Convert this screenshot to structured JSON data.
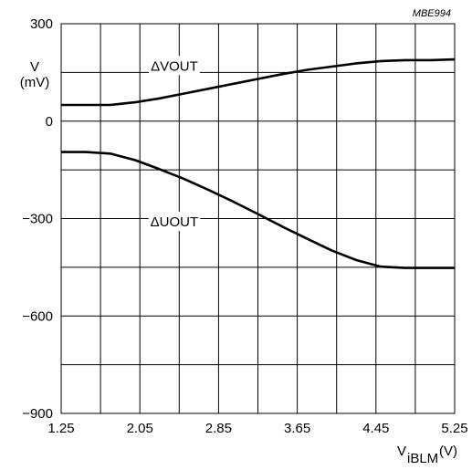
{
  "figure_id": "MBE994",
  "chart_data": {
    "type": "line",
    "title": "",
    "ylabel": "V",
    "yunit": "(mV)",
    "xlabel_main": "V",
    "xlabel_sub": "iBLM",
    "xunit": "(V)",
    "xlim": [
      1.25,
      5.25
    ],
    "ylim": [
      -900,
      300
    ],
    "x_ticks": [
      "1.25",
      "2.05",
      "2.85",
      "3.65",
      "4.45",
      "5.25"
    ],
    "y_ticks": [
      "300",
      "0",
      "−300",
      "−600",
      "−900"
    ],
    "y_tick_values": [
      300,
      0,
      -300,
      -600,
      -900
    ],
    "grid": true,
    "series": [
      {
        "name": "ΔVOUT",
        "color": "#000000",
        "x": [
          1.25,
          1.5,
          1.75,
          2.0,
          2.25,
          2.5,
          2.75,
          3.0,
          3.25,
          3.5,
          3.75,
          4.0,
          4.25,
          4.5,
          4.75,
          5.0,
          5.25
        ],
        "y": [
          50,
          50,
          50,
          58,
          70,
          85,
          100,
          115,
          130,
          145,
          158,
          168,
          178,
          185,
          188,
          188,
          190
        ]
      },
      {
        "name": "ΔUOUT",
        "color": "#000000",
        "x": [
          1.25,
          1.5,
          1.75,
          2.0,
          2.25,
          2.5,
          2.75,
          3.0,
          3.25,
          3.5,
          3.75,
          4.0,
          4.25,
          4.5,
          4.75,
          5.0,
          5.25
        ],
        "y": [
          -95,
          -95,
          -100,
          -120,
          -148,
          -178,
          -212,
          -248,
          -286,
          -325,
          -362,
          -398,
          -428,
          -448,
          -452,
          -452,
          -452
        ]
      }
    ]
  }
}
